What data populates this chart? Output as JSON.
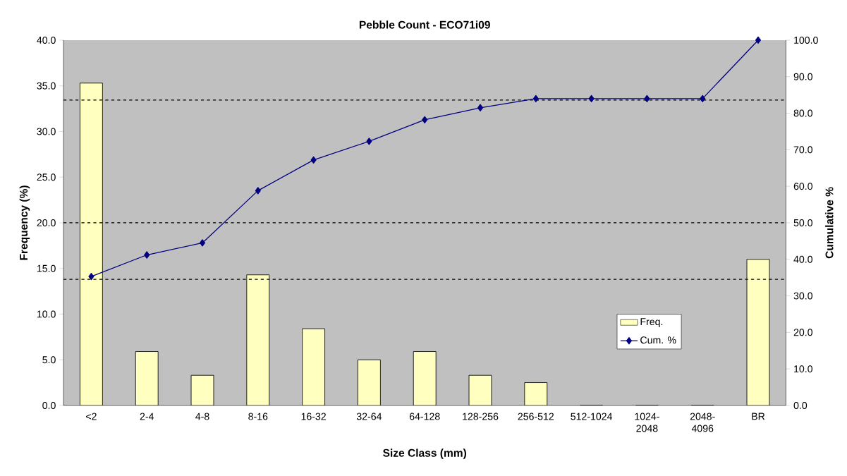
{
  "chart_data": {
    "type": "bar",
    "title": "Pebble Count - ECO71i09",
    "xlabel": "Size Class (mm)",
    "ylabel": "Frequency (%)",
    "y2label": "Cumulative %",
    "categories": [
      "<2",
      "2-4",
      "4-8",
      "8-16",
      "16-32",
      "32-64",
      "64-128",
      "128-256",
      "256-512",
      "512-1024",
      "1024-2048",
      "2048-4096",
      "BR"
    ],
    "series": [
      {
        "name": "Freq.",
        "color": "#ffffc0",
        "values": [
          35.3,
          5.9,
          3.3,
          14.3,
          8.4,
          5.0,
          5.9,
          3.3,
          2.5,
          0,
          0,
          0,
          16.0
        ]
      },
      {
        "name": "Cum. %",
        "type": "line",
        "axis": "y2",
        "color": "#000080",
        "marker": "diamond",
        "values": [
          35.3,
          41.2,
          44.5,
          58.8,
          67.2,
          72.3,
          78.2,
          81.5,
          84.0,
          84.0,
          84.0,
          84.0,
          100.0
        ]
      }
    ],
    "ylim": [
      0,
      40
    ],
    "yticks": [
      {
        "value": 0,
        "label": "0.0"
      },
      {
        "value": 5,
        "label": "5.0"
      },
      {
        "value": 10,
        "label": "10.0"
      },
      {
        "value": 15,
        "label": "15.0"
      },
      {
        "value": 20,
        "label": "20.0"
      },
      {
        "value": 25,
        "label": "25.0"
      },
      {
        "value": 30,
        "label": "30.0"
      },
      {
        "value": 35,
        "label": "35.0"
      },
      {
        "value": 40,
        "label": "40.0"
      }
    ],
    "y2lim": [
      0,
      100
    ],
    "y2ticks": [
      {
        "value": 0,
        "label": "0.0"
      },
      {
        "value": 10,
        "label": "10.0"
      },
      {
        "value": 20,
        "label": "20.0"
      },
      {
        "value": 30,
        "label": "30.0"
      },
      {
        "value": 40,
        "label": "40.0"
      },
      {
        "value": 50,
        "label": "50.0"
      },
      {
        "value": 60,
        "label": "60.0"
      },
      {
        "value": 70,
        "label": "70.0"
      },
      {
        "value": 80,
        "label": "80.0"
      },
      {
        "value": 90,
        "label": "90.0"
      },
      {
        "value": 100,
        "label": "100.0"
      }
    ],
    "ref_lines": [
      {
        "axis": "y2",
        "value": 34.5,
        "color": "#000000",
        "line_style": "dashed"
      },
      {
        "axis": "y2",
        "value": 50,
        "color": "#000000",
        "line_style": "dashed"
      },
      {
        "axis": "y2",
        "value": 83.6,
        "color": "#000000",
        "line_style": "dashed"
      }
    ],
    "legend": "bottom right"
  }
}
